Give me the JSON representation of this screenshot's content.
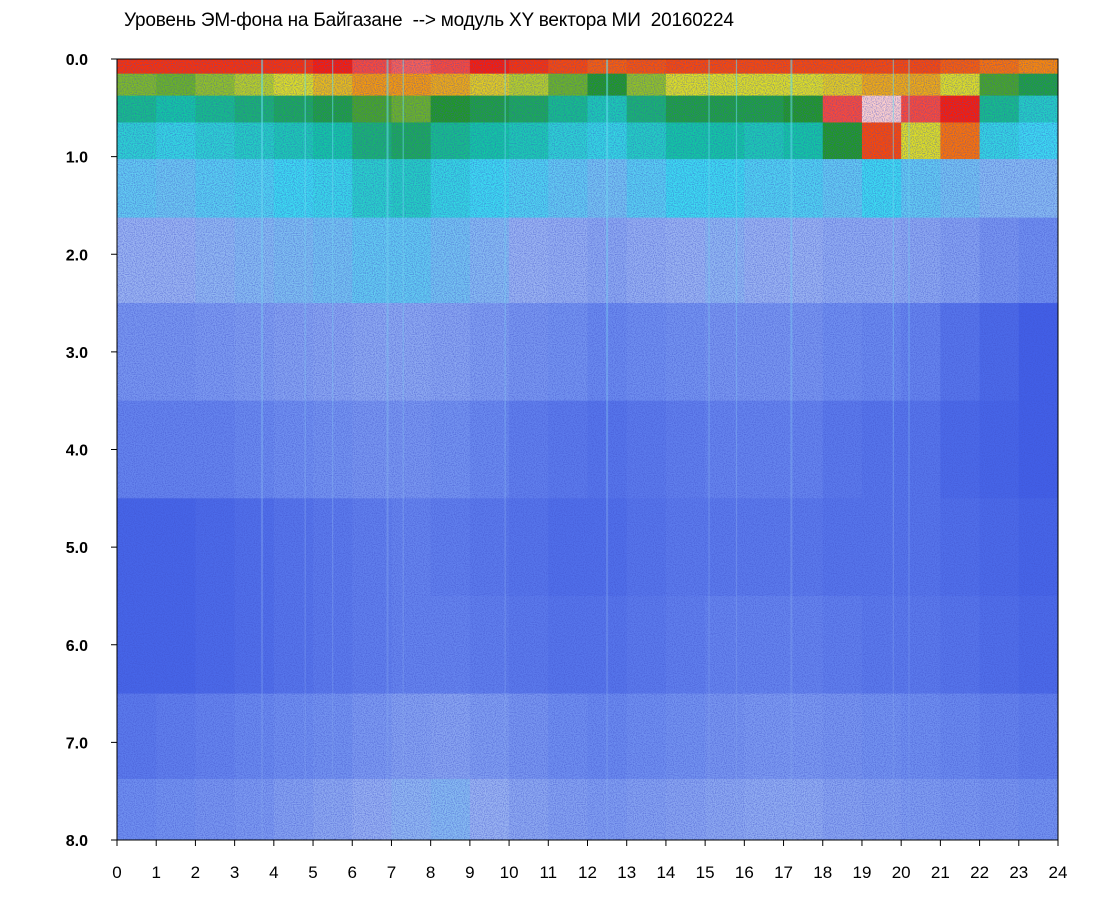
{
  "chart_data": {
    "type": "heatmap",
    "title": "Уровень ЭМ-фона на Байгазане  --> модуль XY вектора МИ  20160224",
    "xlabel": "",
    "ylabel": "",
    "xlim": [
      0,
      24
    ],
    "ylim": [
      0.0,
      8.0
    ],
    "y_inverted": true,
    "grid": false,
    "x_ticks": [
      "0",
      "1",
      "2",
      "3",
      "4",
      "5",
      "6",
      "7",
      "8",
      "9",
      "10",
      "11",
      "12",
      "13",
      "14",
      "15",
      "16",
      "17",
      "18",
      "19",
      "20",
      "21",
      "22",
      "23",
      "24"
    ],
    "y_ticks": [
      "0.0",
      "1.0",
      "2.0",
      "3.0",
      "4.0",
      "5.0",
      "6.0",
      "7.0",
      "8.0"
    ],
    "colormap": [
      "#1a22d8",
      "#3c5ae6",
      "#6f8ff0",
      "#9ab4f2",
      "#3cdcf0",
      "#11c9a0",
      "#1f9a1f",
      "#e0e020",
      "#ff8800",
      "#ff1a00",
      "#ffffff"
    ],
    "value_range": [
      0,
      1
    ],
    "columns_x": [
      0.5,
      1.5,
      2.5,
      3.5,
      4.5,
      5.5,
      6.5,
      7.5,
      8.5,
      9.5,
      10.5,
      11.5,
      12.5,
      13.5,
      14.5,
      15.5,
      16.5,
      17.5,
      18.5,
      19.5,
      20.5,
      21.5,
      22.5,
      23.5
    ],
    "rows_y": [
      0.05,
      0.25,
      0.5,
      0.8,
      1.25,
      2.0,
      3.0,
      4.0,
      5.0,
      6.0,
      7.0,
      7.75
    ],
    "values": [
      [
        0.88,
        0.88,
        0.88,
        0.88,
        0.88,
        0.9,
        0.92,
        0.93,
        0.92,
        0.9,
        0.88,
        0.86,
        0.84,
        0.85,
        0.86,
        0.86,
        0.86,
        0.86,
        0.86,
        0.86,
        0.86,
        0.84,
        0.82,
        0.8
      ],
      [
        0.65,
        0.64,
        0.66,
        0.68,
        0.7,
        0.74,
        0.78,
        0.78,
        0.76,
        0.72,
        0.68,
        0.64,
        0.6,
        0.66,
        0.7,
        0.7,
        0.7,
        0.7,
        0.72,
        0.76,
        0.76,
        0.7,
        0.62,
        0.58
      ],
      [
        0.52,
        0.5,
        0.52,
        0.54,
        0.56,
        0.58,
        0.62,
        0.64,
        0.6,
        0.58,
        0.56,
        0.52,
        0.48,
        0.54,
        0.58,
        0.58,
        0.58,
        0.6,
        0.92,
        0.98,
        0.92,
        0.9,
        0.52,
        0.46
      ],
      [
        0.44,
        0.42,
        0.44,
        0.46,
        0.48,
        0.5,
        0.54,
        0.56,
        0.52,
        0.5,
        0.48,
        0.44,
        0.42,
        0.46,
        0.5,
        0.5,
        0.48,
        0.5,
        0.6,
        0.86,
        0.7,
        0.82,
        0.42,
        0.4
      ],
      [
        0.36,
        0.35,
        0.37,
        0.38,
        0.4,
        0.41,
        0.45,
        0.46,
        0.42,
        0.4,
        0.38,
        0.36,
        0.34,
        0.37,
        0.4,
        0.4,
        0.38,
        0.38,
        0.36,
        0.4,
        0.36,
        0.34,
        0.32,
        0.32
      ],
      [
        0.3,
        0.3,
        0.31,
        0.32,
        0.33,
        0.34,
        0.36,
        0.36,
        0.34,
        0.32,
        0.3,
        0.29,
        0.27,
        0.29,
        0.3,
        0.31,
        0.3,
        0.3,
        0.28,
        0.28,
        0.27,
        0.25,
        0.22,
        0.2
      ],
      [
        0.22,
        0.22,
        0.23,
        0.24,
        0.25,
        0.26,
        0.27,
        0.27,
        0.26,
        0.24,
        0.22,
        0.21,
        0.19,
        0.2,
        0.21,
        0.22,
        0.22,
        0.22,
        0.2,
        0.19,
        0.18,
        0.15,
        0.13,
        0.11
      ],
      [
        0.18,
        0.18,
        0.18,
        0.19,
        0.2,
        0.21,
        0.22,
        0.22,
        0.21,
        0.19,
        0.17,
        0.16,
        0.15,
        0.16,
        0.17,
        0.18,
        0.18,
        0.18,
        0.16,
        0.15,
        0.15,
        0.13,
        0.12,
        0.11
      ],
      [
        0.12,
        0.12,
        0.13,
        0.14,
        0.15,
        0.16,
        0.17,
        0.18,
        0.17,
        0.16,
        0.15,
        0.14,
        0.14,
        0.15,
        0.16,
        0.16,
        0.16,
        0.16,
        0.15,
        0.15,
        0.15,
        0.14,
        0.13,
        0.12
      ],
      [
        0.12,
        0.12,
        0.13,
        0.14,
        0.15,
        0.16,
        0.17,
        0.18,
        0.18,
        0.17,
        0.16,
        0.15,
        0.15,
        0.16,
        0.17,
        0.18,
        0.18,
        0.18,
        0.17,
        0.16,
        0.16,
        0.15,
        0.14,
        0.13
      ],
      [
        0.16,
        0.17,
        0.18,
        0.19,
        0.2,
        0.21,
        0.23,
        0.25,
        0.26,
        0.24,
        0.22,
        0.2,
        0.19,
        0.2,
        0.21,
        0.22,
        0.23,
        0.23,
        0.22,
        0.21,
        0.2,
        0.19,
        0.18,
        0.17
      ],
      [
        0.2,
        0.21,
        0.22,
        0.23,
        0.25,
        0.27,
        0.29,
        0.31,
        0.32,
        0.3,
        0.27,
        0.25,
        0.24,
        0.25,
        0.26,
        0.27,
        0.28,
        0.28,
        0.26,
        0.25,
        0.24,
        0.23,
        0.22,
        0.21
      ]
    ]
  }
}
